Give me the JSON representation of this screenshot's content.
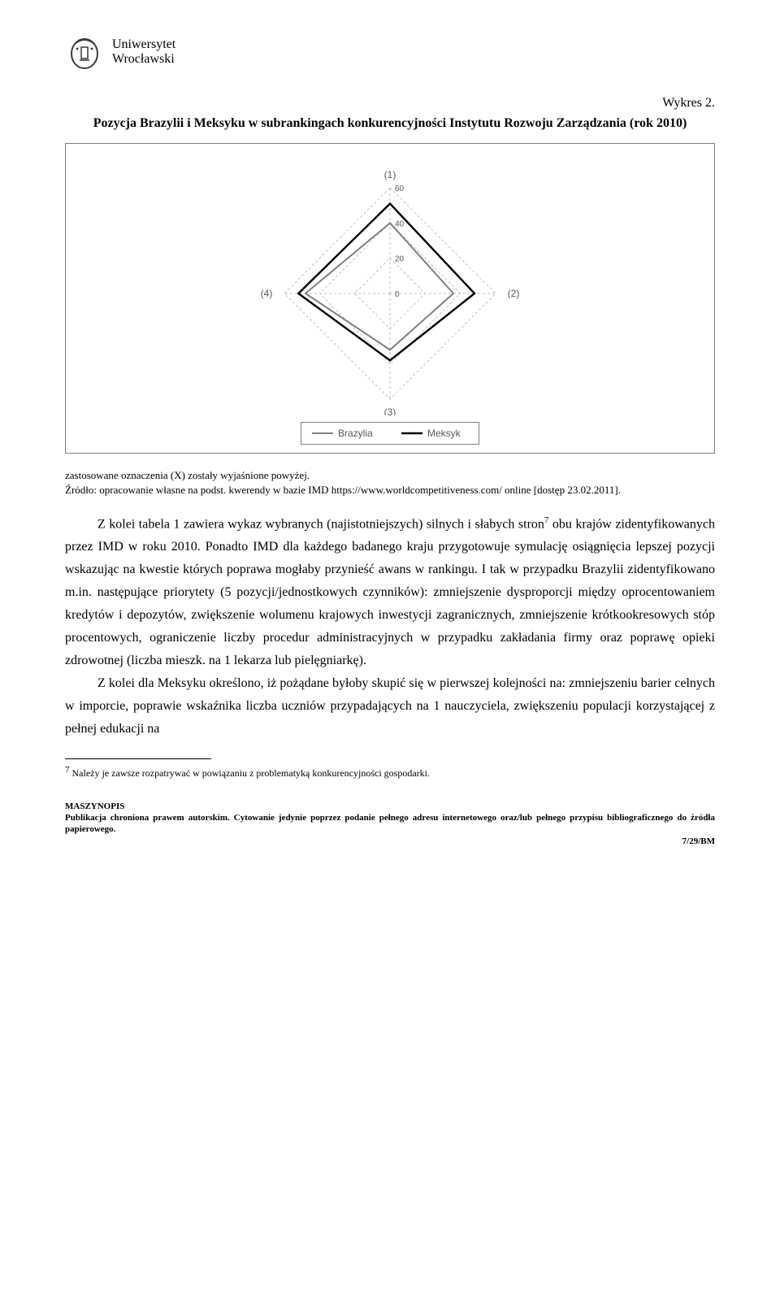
{
  "logo": {
    "line1": "Uniwersytet",
    "line2": "Wrocławski"
  },
  "heading_label": "Wykres 2.",
  "title": "Pozycja Brazylii i Meksyku w subrankingach konkurencyjności Instytutu Rozwoju Zarządzania (rok 2010)",
  "chart": {
    "type": "radar",
    "axis_labels": [
      "(1)",
      "(2)",
      "(3)",
      "(4)"
    ],
    "rings": [
      0,
      20,
      40,
      60
    ],
    "ring_labels": [
      "0",
      "20",
      "40",
      "60"
    ],
    "ring_label_fontsize": 10,
    "axis_label_fontsize": 12,
    "max": 60,
    "series": [
      {
        "name": "Brazylia",
        "color": "#808080",
        "width": 2,
        "values": [
          40,
          36,
          32,
          48
        ]
      },
      {
        "name": "Meksyk",
        "color": "#000000",
        "width": 2.4,
        "values": [
          51,
          48,
          38,
          52
        ]
      }
    ],
    "grid_color": "#bfbfbf",
    "grid_dash": "3,3",
    "background_color": "#ffffff",
    "box_border_color": "#7f7f7f",
    "legend_border_color": "#808080"
  },
  "source_line1": "zastosowane oznaczenia (X) zostały wyjaśnione powyżej.",
  "source_line2": "Źródło: opracowanie własne na podst. kwerendy w bazie IMD https://www.worldcompetitiveness.com/ online [dostęp 23.02.2011].",
  "paragraph1_a": "Z kolei tabela 1 zawiera wykaz wybranych (najistotniejszych) silnych i słabych stron",
  "paragraph1_sup": "7",
  "paragraph1_b": " obu krajów zidentyfikowanych przez IMD w roku 2010. Ponadto IMD dla każdego badanego kraju przygotowuje symulację osiągnięcia lepszej pozycji wskazując na kwestie których poprawa mogłaby przynieść awans w rankingu. I tak w przypadku Brazylii zidentyfikowano m.in. następujące priorytety (5 pozycji/jednostkowych czynników): zmniejszenie dysproporcji między oprocentowaniem kredytów i depozytów, zwiększenie wolumenu krajowych inwestycji zagranicznych, zmniejszenie krótkookresowych stóp procentowych, ograniczenie liczby procedur administracyjnych w przypadku zakładania firmy oraz poprawę opieki zdrowotnej (liczba mieszk. na 1 lekarza lub pielęgniarkę).",
  "paragraph2": "Z kolei dla Meksyku określono, iż pożądane byłoby skupić się w pierwszej kolejności na: zmniejszeniu barier celnych w imporcie, poprawie wskaźnika liczba uczniów przypadających na 1 nauczyciela, zwiększeniu populacji korzystającej z pełnej edukacji na",
  "footnote_marker": "7",
  "footnote_text": " Należy je zawsze rozpatrywać w powiązaniu z problematyką konkurencyjności gospodarki.",
  "footer_bold": "MASZYNOPIS",
  "footer_text": "Publikacja chroniona prawem autorskim. Cytowanie jedynie poprzez podanie pełnego adresu internetowego oraz/lub pełnego przypisu bibliograficznego do źródła papierowego.",
  "page_number": "7/29/BM"
}
